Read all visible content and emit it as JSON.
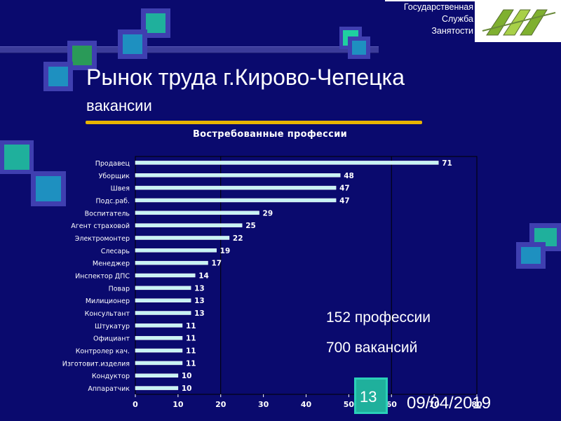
{
  "header": {
    "org_line1": "Государственная",
    "org_line2": "Служба",
    "org_line3": "Занятости",
    "title": "Рынок труда г.Кирово-Чепецка",
    "subtitle": "вакансии"
  },
  "colors": {
    "background": "#0a0a6e",
    "bar": "#c8f4f4",
    "accent_gold": "#e8b400",
    "teal": "#1fb09c"
  },
  "chart_data": {
    "type": "bar",
    "orientation": "horizontal",
    "title": "Востребованные профессии",
    "categories": [
      "Продавец",
      "Уборщик",
      "Швея",
      "Подс.раб.",
      "Воспитатель",
      "Агент страховой",
      "Электромонтер",
      "Слесарь",
      "Менеджер",
      "Инспектор ДПС",
      "Повар",
      "Милиционер",
      "Консультант",
      "Штукатур",
      "Официант",
      "Контролер кач.",
      "Изготовит.изделия",
      "Кондуктор",
      "Аппаратчик"
    ],
    "values": [
      71,
      48,
      47,
      47,
      29,
      25,
      22,
      19,
      17,
      14,
      13,
      13,
      13,
      11,
      11,
      11,
      11,
      10,
      10
    ],
    "x_ticks": [
      0,
      10,
      20,
      30,
      40,
      50,
      60,
      70,
      80
    ],
    "xlim": [
      0,
      80
    ],
    "grid": false
  },
  "info": {
    "professions": "152 профессии",
    "vacancies": "700 вакансий"
  },
  "footer": {
    "slide_number": "13",
    "date": "09/04/2019"
  }
}
